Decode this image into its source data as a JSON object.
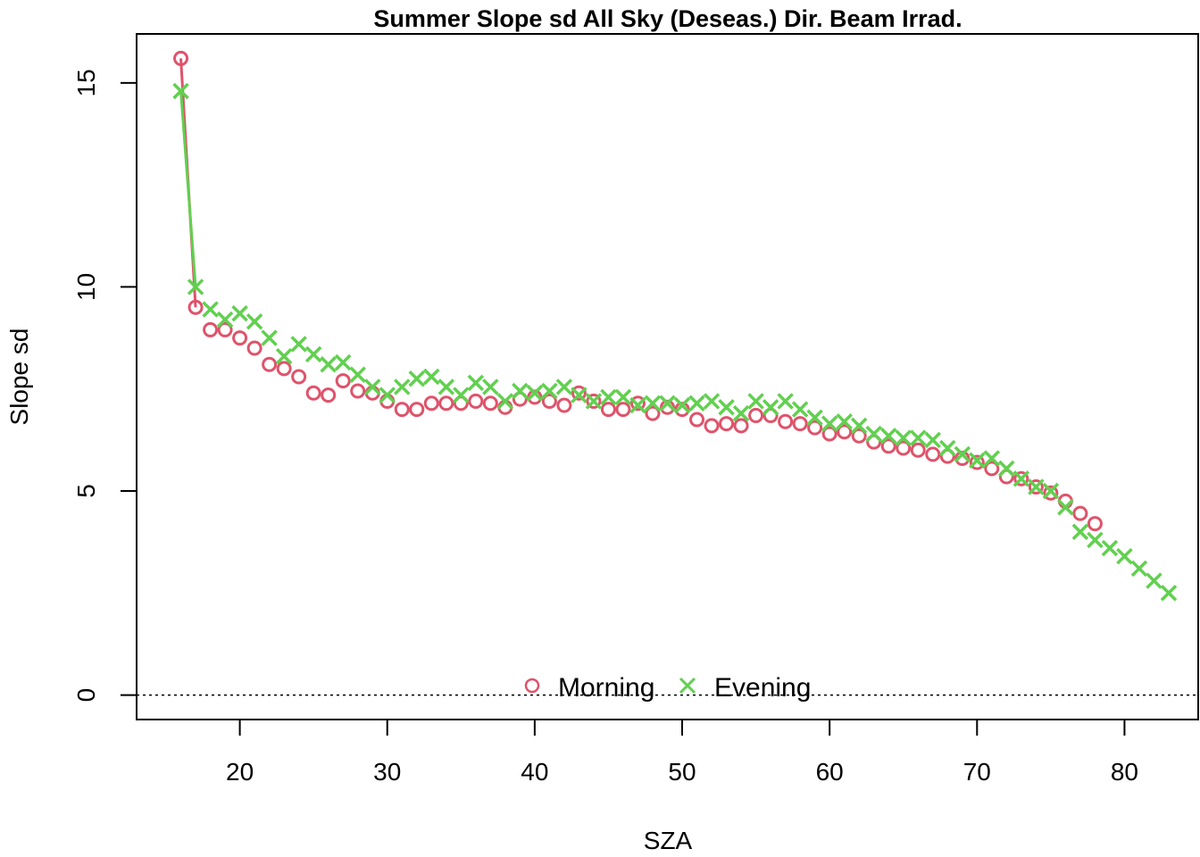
{
  "chart_data": {
    "type": "scatter",
    "title": "Summer Slope sd All Sky (Deseas.) Dir. Beam Irrad.",
    "xlabel": "SZA",
    "ylabel": "Slope sd",
    "xlim": [
      13,
      85
    ],
    "ylim": [
      -0.6,
      16.2
    ],
    "xticks": [
      20,
      30,
      40,
      50,
      60,
      70,
      80
    ],
    "yticks": [
      0,
      5,
      10,
      15
    ],
    "reference_line": {
      "y": 0,
      "style": "dotted"
    },
    "legend_position": "bottom",
    "series": [
      {
        "name": "Morning",
        "marker": "circle",
        "color": "#DF536B",
        "x": [
          16,
          17,
          18,
          19,
          20,
          21,
          22,
          23,
          24,
          25,
          26,
          27,
          28,
          29,
          30,
          31,
          32,
          33,
          34,
          35,
          36,
          37,
          38,
          39,
          40,
          41,
          42,
          43,
          44,
          45,
          46,
          47,
          48,
          49,
          50,
          51,
          52,
          53,
          54,
          55,
          56,
          57,
          58,
          59,
          60,
          61,
          62,
          63,
          64,
          65,
          66,
          67,
          68,
          69,
          70,
          71,
          72,
          73,
          74,
          75,
          76,
          77,
          78
        ],
        "y": [
          15.6,
          9.5,
          8.95,
          8.95,
          8.75,
          8.5,
          8.1,
          8.0,
          7.8,
          7.4,
          7.35,
          7.7,
          7.45,
          7.4,
          7.2,
          7.0,
          7.0,
          7.15,
          7.15,
          7.15,
          7.2,
          7.15,
          7.05,
          7.25,
          7.3,
          7.2,
          7.1,
          7.4,
          7.2,
          7.0,
          7.0,
          7.15,
          6.9,
          7.05,
          7.0,
          6.75,
          6.6,
          6.65,
          6.6,
          6.85,
          6.85,
          6.7,
          6.65,
          6.55,
          6.4,
          6.45,
          6.35,
          6.2,
          6.1,
          6.05,
          6.0,
          5.9,
          5.85,
          5.8,
          5.7,
          5.55,
          5.35,
          5.3,
          5.1,
          4.95,
          4.75,
          4.45,
          4.2
        ]
      },
      {
        "name": "Evening",
        "marker": "cross",
        "color": "#61D04F",
        "x": [
          16,
          17,
          18,
          19,
          20,
          21,
          22,
          23,
          24,
          25,
          26,
          27,
          28,
          29,
          30,
          31,
          32,
          33,
          34,
          35,
          36,
          37,
          38,
          39,
          40,
          41,
          42,
          43,
          44,
          45,
          46,
          47,
          48,
          49,
          50,
          51,
          52,
          53,
          54,
          55,
          56,
          57,
          58,
          59,
          60,
          61,
          62,
          63,
          64,
          65,
          66,
          67,
          68,
          69,
          70,
          71,
          72,
          73,
          74,
          75,
          76,
          77,
          78,
          79,
          80,
          81,
          82,
          83
        ],
        "y": [
          14.8,
          10.0,
          9.45,
          9.2,
          9.35,
          9.15,
          8.75,
          8.3,
          8.6,
          8.35,
          8.1,
          8.15,
          7.85,
          7.55,
          7.35,
          7.55,
          7.75,
          7.8,
          7.55,
          7.35,
          7.65,
          7.55,
          7.2,
          7.45,
          7.4,
          7.45,
          7.55,
          7.35,
          7.2,
          7.3,
          7.3,
          7.1,
          7.15,
          7.15,
          7.1,
          7.15,
          7.2,
          7.05,
          6.9,
          7.2,
          7.05,
          7.2,
          7.0,
          6.8,
          6.65,
          6.7,
          6.6,
          6.4,
          6.35,
          6.3,
          6.3,
          6.25,
          6.05,
          5.9,
          5.75,
          5.8,
          5.55,
          5.3,
          5.1,
          5.0,
          4.6,
          4.0,
          3.8,
          3.6,
          3.4,
          3.1,
          2.8,
          2.5
        ]
      }
    ]
  }
}
